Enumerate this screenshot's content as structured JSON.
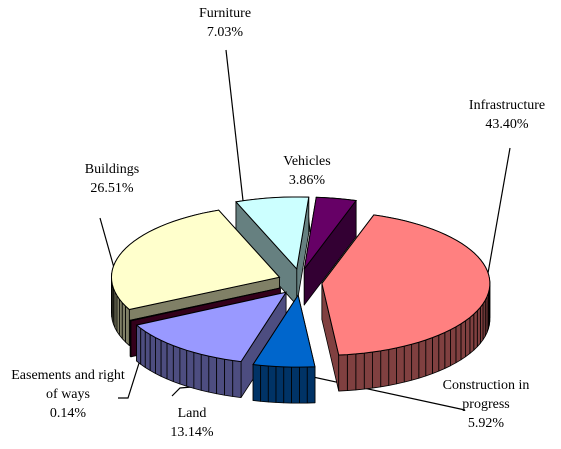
{
  "chart_data": {
    "type": "pie3d",
    "categories": [
      "Infrastructure",
      "Construction in progress",
      "Land",
      "Easements and right of ways",
      "Buildings",
      "Furniture",
      "Vehicles"
    ],
    "values": [
      43.4,
      5.92,
      13.14,
      0.14,
      26.51,
      7.03,
      3.86
    ],
    "value_labels": [
      "43.40%",
      "5.92%",
      "13.14%",
      "0.14%",
      "26.51%",
      "7.03%",
      "3.86%"
    ],
    "colors": [
      "#ff8080",
      "#0066cc",
      "#9999ff",
      "#660033",
      "#ffffcc",
      "#ccffff",
      "#660066"
    ]
  }
}
